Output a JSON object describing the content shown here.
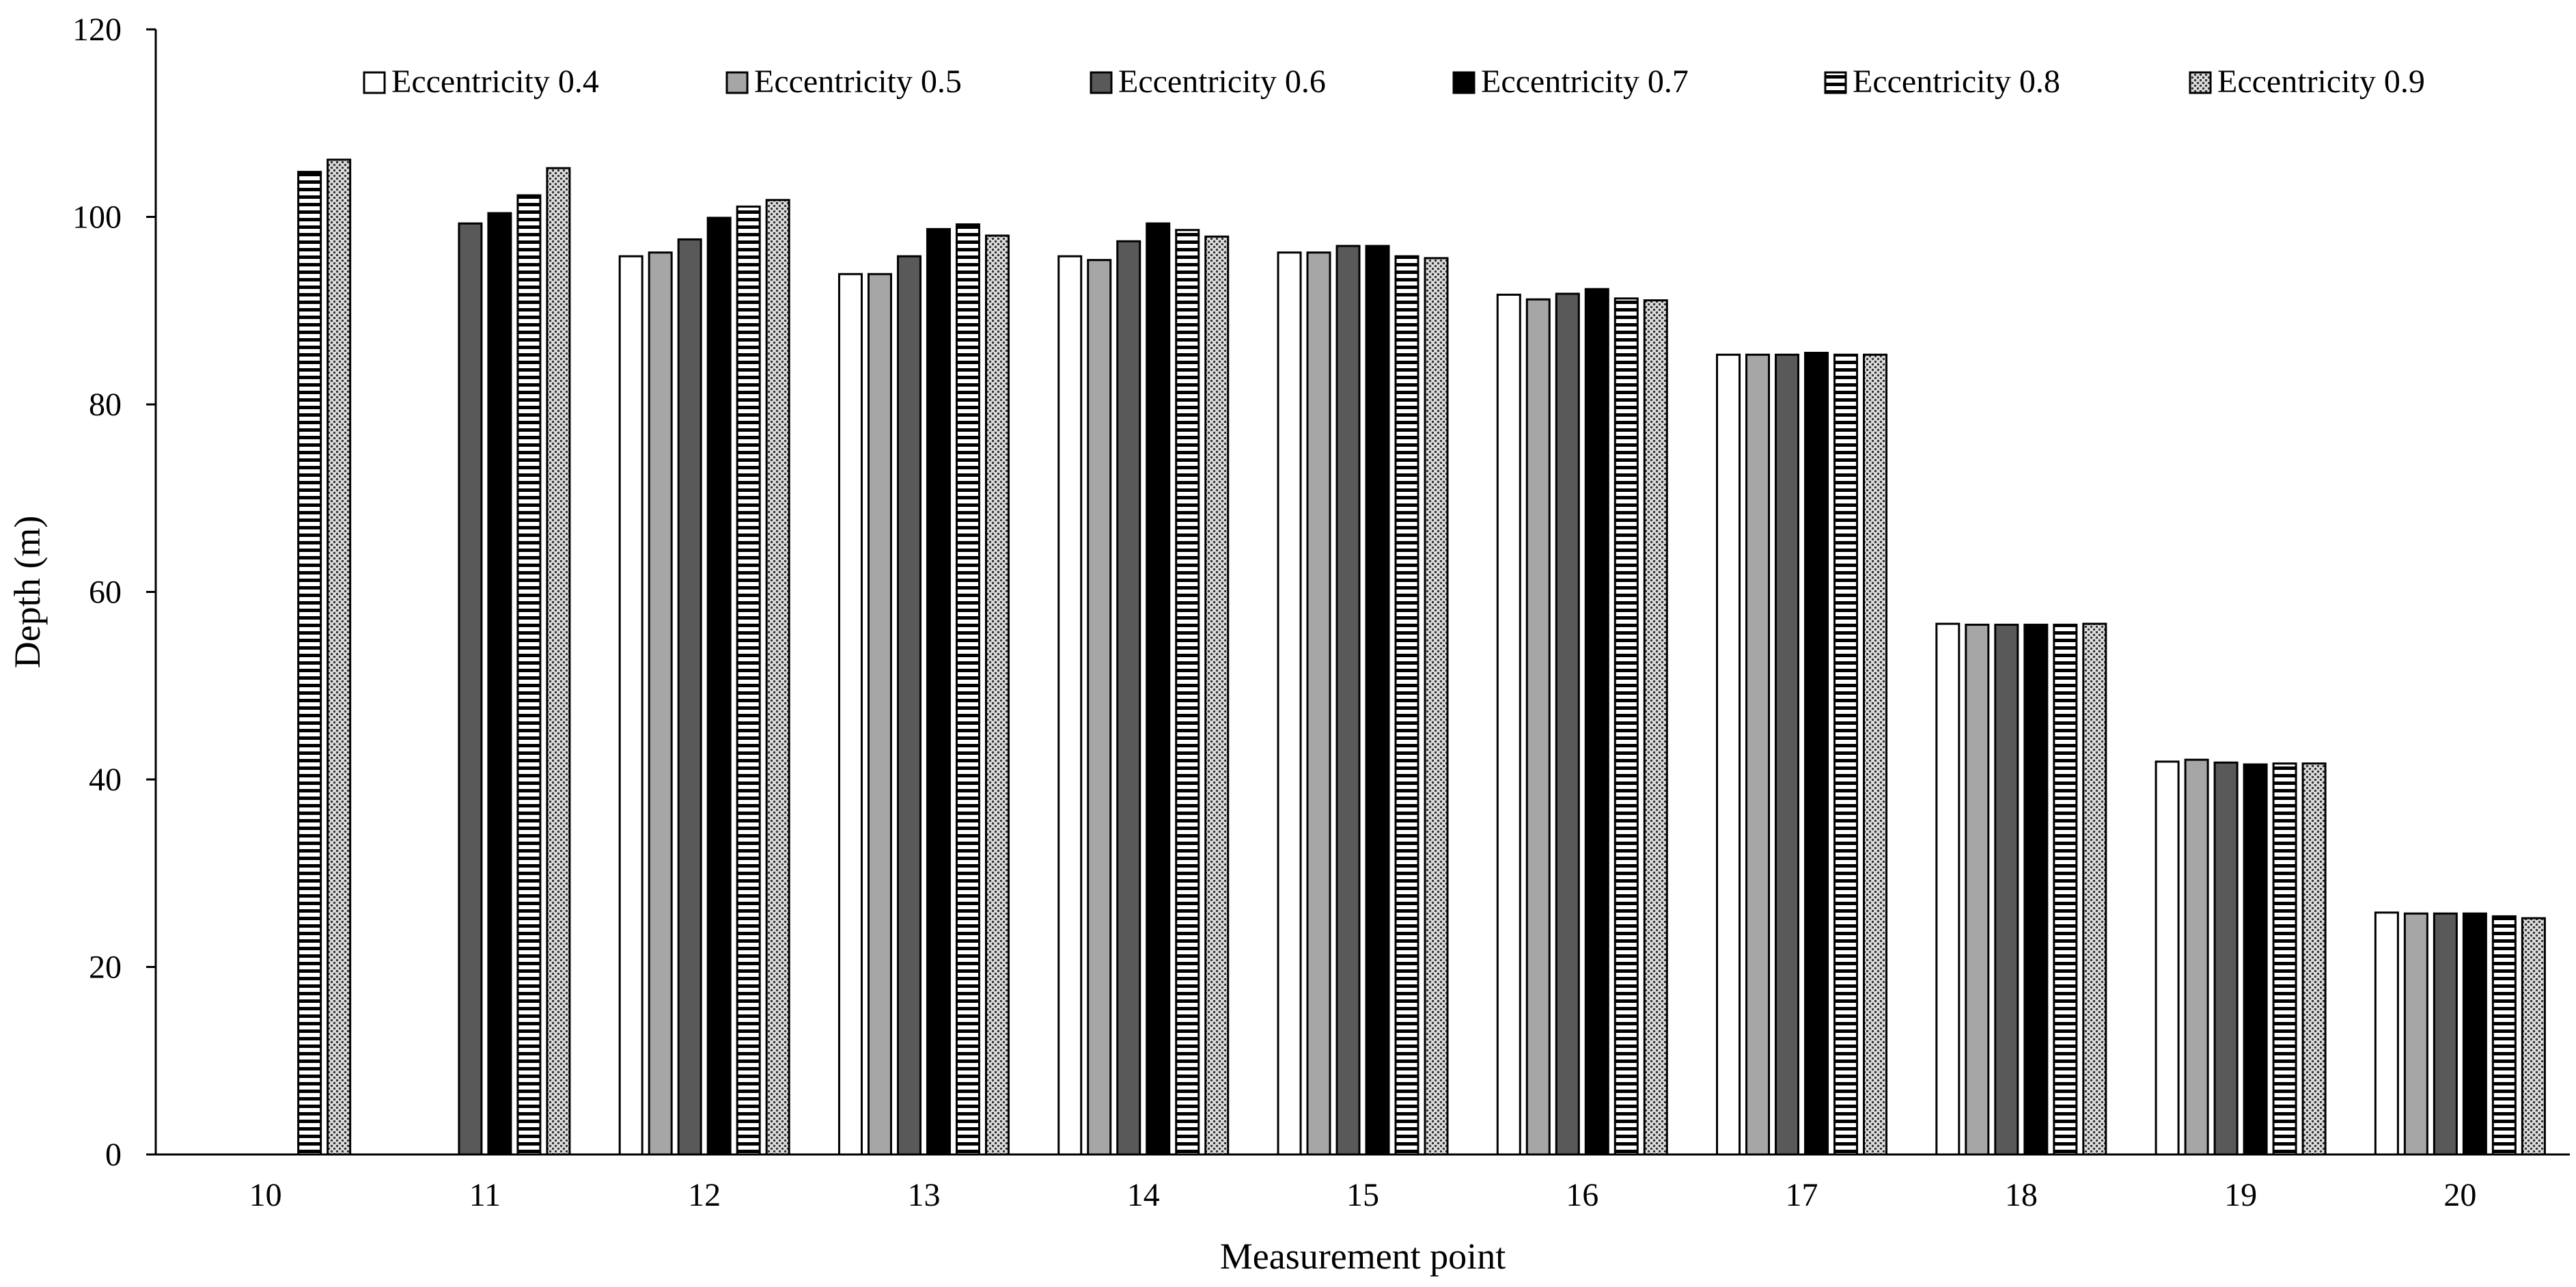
{
  "chart_data": {
    "type": "bar",
    "xlabel": "Measurement point",
    "ylabel": "Depth (m)",
    "ylim": [
      0,
      120
    ],
    "yticks": [
      0,
      20,
      40,
      60,
      80,
      100,
      120
    ],
    "grid": false,
    "legend_position": "top",
    "categories": [
      "10",
      "11",
      "12",
      "13",
      "14",
      "15",
      "16",
      "17",
      "18",
      "19",
      "20"
    ],
    "series": [
      {
        "name": "Eccentricity 0.4",
        "pattern": "white",
        "values": [
          null,
          null,
          95.8,
          93.9,
          95.8,
          96.2,
          91.7,
          85.3,
          56.6,
          41.9,
          25.8
        ]
      },
      {
        "name": "Eccentricity 0.5",
        "pattern": "light-gray",
        "values": [
          null,
          null,
          96.2,
          93.9,
          95.4,
          96.2,
          91.2,
          85.3,
          56.5,
          42.1,
          25.7
        ]
      },
      {
        "name": "Eccentricity 0.6",
        "pattern": "dark-gray",
        "values": [
          null,
          99.3,
          97.6,
          95.8,
          97.4,
          96.9,
          91.8,
          85.3,
          56.5,
          41.8,
          25.7
        ]
      },
      {
        "name": "Eccentricity 0.7",
        "pattern": "black",
        "values": [
          null,
          100.4,
          99.9,
          98.7,
          99.3,
          96.9,
          92.3,
          85.5,
          56.5,
          41.6,
          25.7
        ]
      },
      {
        "name": "Eccentricity 0.8",
        "pattern": "horizontal-stripes",
        "values": [
          104.8,
          102.3,
          101.1,
          99.2,
          98.6,
          95.8,
          91.3,
          85.3,
          56.5,
          41.7,
          25.4
        ]
      },
      {
        "name": "Eccentricity 0.9",
        "pattern": "dotted",
        "values": [
          106.1,
          105.2,
          101.8,
          98.0,
          97.9,
          95.6,
          91.1,
          85.3,
          56.6,
          41.7,
          25.2
        ]
      }
    ]
  }
}
